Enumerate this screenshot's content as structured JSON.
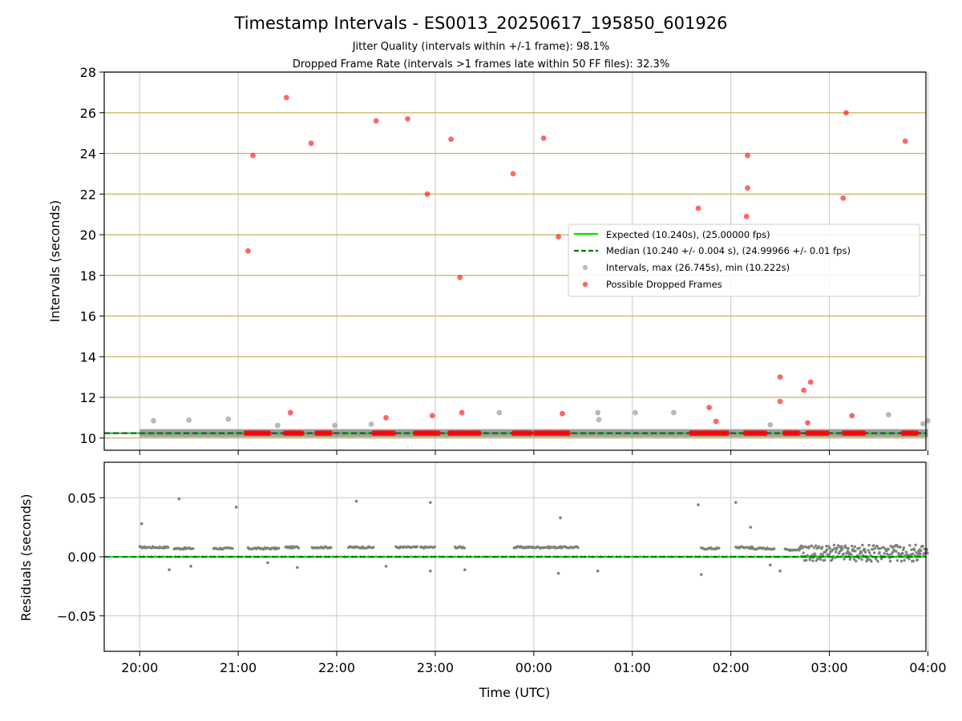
{
  "figure": {
    "title": "Timestamp Intervals - ES0013_20250617_195850_601926",
    "subtitle_lines": [
      "Jitter Quality (intervals within +/-1 frame): 98.1%",
      "Dropped Frame Rate (intervals >1 frames late within 50 FF files): 32.3%"
    ]
  },
  "colors": {
    "expected": "#00e600",
    "median": "#007a00",
    "intervals": "#808080",
    "dropped": "#ff0000",
    "hgrid": "#c8b45a",
    "vgrid": "#c8c8c8"
  },
  "x_axis": {
    "label": "Time (UTC)",
    "ticks": [
      "20:00",
      "21:00",
      "22:00",
      "23:00",
      "00:00",
      "01:00",
      "02:00",
      "03:00",
      "04:00"
    ],
    "range_hours": [
      -0.36,
      7.98
    ]
  },
  "chart_data": [
    {
      "type": "scatter",
      "panel": "intervals",
      "ylabel": "Intervals (seconds)",
      "ylim": [
        9.4,
        28
      ],
      "yticks": [
        "10",
        "12",
        "14",
        "16",
        "18",
        "20",
        "22",
        "24",
        "26",
        "28"
      ],
      "x_unit": "hours after 20:00 UTC",
      "grid": "on",
      "legend_position": "center-right",
      "expected_value": 10.24,
      "median_value": 10.24,
      "series": [
        {
          "name": "Expected (10.240s), (25.00000 fps)",
          "kind": "line",
          "values": [
            10.24
          ]
        },
        {
          "name": "Median (10.240 +/- 0.004 s), (24.99966 +/- 0.01 fps)",
          "kind": "dashed-line",
          "values": [
            10.24
          ]
        },
        {
          "name": "Intervals, max (26.745s), min (10.222s)",
          "kind": "points",
          "points": [
            [
              0.14,
              10.85
            ],
            [
              0.5,
              10.88
            ],
            [
              0.9,
              10.93
            ],
            [
              1.4,
              10.62
            ],
            [
              1.98,
              10.62
            ],
            [
              2.35,
              10.68
            ],
            [
              3.65,
              11.25
            ],
            [
              4.65,
              11.25
            ],
            [
              4.66,
              10.9
            ],
            [
              5.03,
              11.25
            ],
            [
              5.42,
              11.25
            ],
            [
              6.4,
              10.65
            ],
            [
              7.6,
              11.15
            ],
            [
              7.95,
              10.7
            ],
            [
              8.0,
              10.85
            ]
          ],
          "band": {
            "x_start": 0.0,
            "x_end": 8.0,
            "y": 10.24
          }
        },
        {
          "name": "Possible Dropped Frames",
          "kind": "points",
          "points": [
            [
              1.1,
              19.2
            ],
            [
              1.15,
              23.9
            ],
            [
              1.49,
              26.75
            ],
            [
              1.53,
              11.25
            ],
            [
              1.74,
              24.5
            ],
            [
              2.4,
              25.6
            ],
            [
              2.5,
              11.0
            ],
            [
              2.72,
              25.7
            ],
            [
              2.92,
              22.0
            ],
            [
              2.97,
              11.1
            ],
            [
              3.16,
              24.7
            ],
            [
              3.25,
              17.9
            ],
            [
              3.27,
              11.25
            ],
            [
              3.79,
              23.0
            ],
            [
              4.1,
              24.75
            ],
            [
              4.25,
              19.9
            ],
            [
              4.29,
              11.2
            ],
            [
              5.67,
              21.3
            ],
            [
              5.78,
              11.5
            ],
            [
              5.85,
              10.82
            ],
            [
              6.17,
              23.9
            ],
            [
              6.17,
              22.3
            ],
            [
              6.16,
              20.9
            ],
            [
              6.5,
              13.0
            ],
            [
              6.5,
              11.8
            ],
            [
              6.74,
              12.35
            ],
            [
              6.78,
              10.75
            ],
            [
              6.81,
              12.75
            ],
            [
              7.14,
              21.8
            ],
            [
              7.17,
              26.0
            ],
            [
              7.23,
              11.1
            ],
            [
              7.77,
              24.6
            ]
          ],
          "band_segments": [
            [
              1.08,
              1.32
            ],
            [
              1.48,
              1.65
            ],
            [
              1.8,
              1.95
            ],
            [
              2.38,
              2.58
            ],
            [
              2.8,
              3.05
            ],
            [
              3.15,
              3.45
            ],
            [
              3.8,
              3.98
            ],
            [
              4.02,
              4.35
            ],
            [
              5.6,
              5.98
            ],
            [
              6.15,
              6.35
            ],
            [
              6.55,
              6.7
            ],
            [
              6.78,
              6.98
            ],
            [
              7.15,
              7.35
            ],
            [
              7.75,
              7.9
            ]
          ]
        }
      ]
    },
    {
      "type": "scatter",
      "panel": "residuals",
      "ylabel": "Residuals (seconds)",
      "ylim": [
        -0.08,
        0.08
      ],
      "yticks": [
        "0.05",
        "0.00",
        "−0.05"
      ],
      "grid": "on",
      "zero_line": 0.0,
      "outliers": [
        [
          0.02,
          0.028
        ],
        [
          0.4,
          0.049
        ],
        [
          0.98,
          0.042
        ],
        [
          2.2,
          0.047
        ],
        [
          2.95,
          0.046
        ],
        [
          4.27,
          0.033
        ],
        [
          5.67,
          0.044
        ],
        [
          6.05,
          0.046
        ],
        [
          6.2,
          0.025
        ],
        [
          0.3,
          -0.011
        ],
        [
          0.52,
          -0.008
        ],
        [
          1.3,
          -0.005
        ],
        [
          1.6,
          -0.009
        ],
        [
          2.5,
          -0.008
        ],
        [
          2.95,
          -0.012
        ],
        [
          3.3,
          -0.011
        ],
        [
          4.25,
          -0.014
        ],
        [
          4.65,
          -0.012
        ],
        [
          5.7,
          -0.015
        ],
        [
          6.4,
          -0.007
        ],
        [
          6.5,
          -0.012
        ]
      ],
      "clusters": [
        {
          "x_start": 0.0,
          "x_end": 0.3,
          "y": 0.008
        },
        {
          "x_start": 0.35,
          "x_end": 0.55,
          "y": 0.007
        },
        {
          "x_start": 0.75,
          "x_end": 0.95,
          "y": 0.007
        },
        {
          "x_start": 1.1,
          "x_end": 1.42,
          "y": 0.007
        },
        {
          "x_start": 1.48,
          "x_end": 1.62,
          "y": 0.008
        },
        {
          "x_start": 1.75,
          "x_end": 1.95,
          "y": 0.008
        },
        {
          "x_start": 2.12,
          "x_end": 2.38,
          "y": 0.008
        },
        {
          "x_start": 2.6,
          "x_end": 2.82,
          "y": 0.008
        },
        {
          "x_start": 2.85,
          "x_end": 3.0,
          "y": 0.008
        },
        {
          "x_start": 3.2,
          "x_end": 3.3,
          "y": 0.008
        },
        {
          "x_start": 3.8,
          "x_end": 4.45,
          "y": 0.008
        },
        {
          "x_start": 5.7,
          "x_end": 5.88,
          "y": 0.007
        },
        {
          "x_start": 6.05,
          "x_end": 6.22,
          "y": 0.008
        },
        {
          "x_start": 6.2,
          "x_end": 6.45,
          "y": 0.007
        },
        {
          "x_start": 6.55,
          "x_end": 6.7,
          "y": 0.006
        }
      ],
      "noise_region": {
        "x_start": 6.7,
        "x_end": 8.0,
        "y_center": 0.003,
        "spread": 0.007
      }
    }
  ]
}
